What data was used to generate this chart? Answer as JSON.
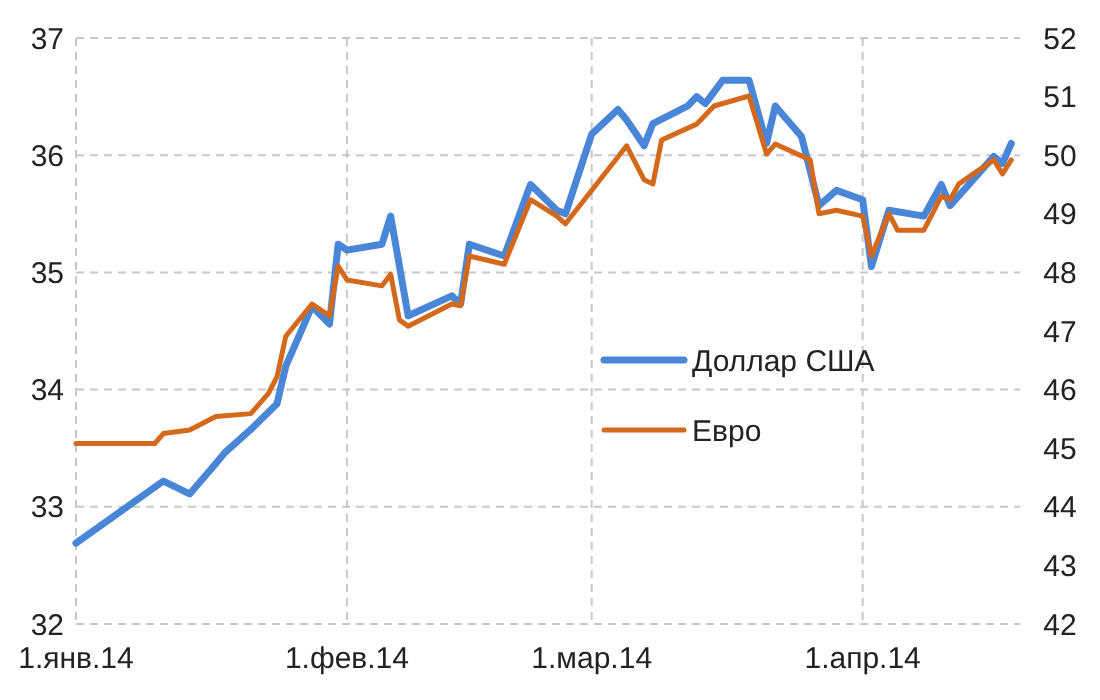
{
  "chart_data": {
    "type": "line",
    "xlim": [
      "2014-01-01",
      "2014-04-19"
    ],
    "xticks": [
      {
        "value": "2014-01-01",
        "label": "1.янв.14"
      },
      {
        "value": "2014-02-01",
        "label": "1.фев.14"
      },
      {
        "value": "2014-03-01",
        "label": "1.мар.14"
      },
      {
        "value": "2014-04-01",
        "label": "1.апр.14"
      }
    ],
    "ylim": [
      32,
      37
    ],
    "yticks": [
      32,
      33,
      34,
      35,
      36,
      37
    ],
    "y2lim": [
      42,
      52
    ],
    "y2ticks": [
      42,
      43,
      44,
      45,
      46,
      47,
      48,
      49,
      50,
      51,
      52
    ],
    "grid": true,
    "legend": "right",
    "line_style": "solid",
    "marker": "none",
    "series": [
      {
        "name": "Доллар США",
        "color": "#4a86d8",
        "axis": "y",
        "x": [
          "2014-01-01",
          "2014-01-11",
          "2014-01-14",
          "2014-01-17",
          "2014-01-18",
          "2014-01-21",
          "2014-01-24",
          "2014-01-25",
          "2014-01-28",
          "2014-01-30",
          "2014-01-31",
          "2014-02-01",
          "2014-02-05",
          "2014-02-06",
          "2014-02-08",
          "2014-02-13",
          "2014-02-14",
          "2014-02-15",
          "2014-02-19",
          "2014-02-22",
          "2014-02-25",
          "2014-02-26",
          "2014-03-01",
          "2014-03-04",
          "2014-03-05",
          "2014-03-07",
          "2014-03-08",
          "2014-03-12",
          "2014-03-13",
          "2014-03-14",
          "2014-03-16",
          "2014-03-19",
          "2014-03-21",
          "2014-03-22",
          "2014-03-25",
          "2014-03-27",
          "2014-03-29",
          "2014-04-01",
          "2014-04-02",
          "2014-04-04",
          "2014-04-08",
          "2014-04-10",
          "2014-04-11",
          "2014-04-16",
          "2014-04-17",
          "2014-04-18"
        ],
        "values": [
          32.69,
          33.22,
          33.11,
          33.37,
          33.46,
          33.66,
          33.88,
          34.2,
          34.71,
          34.56,
          35.24,
          35.19,
          35.24,
          35.48,
          34.63,
          34.8,
          34.73,
          35.24,
          35.14,
          35.75,
          35.53,
          35.5,
          36.18,
          36.39,
          36.3,
          36.08,
          36.27,
          36.42,
          36.5,
          36.44,
          36.64,
          36.64,
          36.1,
          36.42,
          36.16,
          35.57,
          35.7,
          35.62,
          35.05,
          35.53,
          35.48,
          35.75,
          35.57,
          35.99,
          35.93,
          36.1
        ]
      },
      {
        "name": "Евро",
        "color": "#d4691c",
        "axis": "y2",
        "x": [
          "2014-01-01",
          "2014-01-10",
          "2014-01-11",
          "2014-01-14",
          "2014-01-17",
          "2014-01-21",
          "2014-01-23",
          "2014-01-24",
          "2014-01-25",
          "2014-01-28",
          "2014-01-30",
          "2014-01-31",
          "2014-02-01",
          "2014-02-05",
          "2014-02-06",
          "2014-02-07",
          "2014-02-08",
          "2014-02-13",
          "2014-02-14",
          "2014-02-15",
          "2014-02-19",
          "2014-02-22",
          "2014-02-25",
          "2014-02-26",
          "2014-03-05",
          "2014-03-07",
          "2014-03-08",
          "2014-03-09",
          "2014-03-13",
          "2014-03-15",
          "2014-03-19",
          "2014-03-21",
          "2014-03-22",
          "2014-03-26",
          "2014-03-27",
          "2014-03-29",
          "2014-04-01",
          "2014-04-02",
          "2014-04-04",
          "2014-04-05",
          "2014-04-08",
          "2014-04-10",
          "2014-04-11",
          "2014-04-12",
          "2014-04-16",
          "2014-04-17",
          "2014-04-18"
        ],
        "values": [
          45.08,
          45.08,
          45.25,
          45.31,
          45.54,
          45.59,
          45.93,
          46.22,
          46.91,
          47.46,
          47.26,
          48.11,
          47.87,
          47.77,
          47.97,
          47.19,
          47.08,
          47.46,
          47.43,
          48.28,
          48.14,
          49.24,
          48.96,
          48.83,
          50.16,
          49.58,
          49.51,
          50.26,
          50.53,
          50.84,
          51.01,
          50.02,
          50.19,
          49.92,
          49.0,
          49.06,
          48.96,
          48.28,
          49.0,
          48.72,
          48.72,
          49.3,
          49.24,
          49.51,
          49.92,
          49.68,
          49.92
        ]
      }
    ]
  }
}
